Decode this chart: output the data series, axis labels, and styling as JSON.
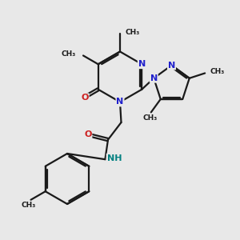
{
  "bg": "#e8e8e8",
  "bc": "#1a1a1a",
  "nc": "#2020cc",
  "oc": "#cc2020",
  "nhc": "#008080",
  "lw": 1.6,
  "off": 0.055,
  "xlim": [
    0,
    10
  ],
  "ylim": [
    0,
    10
  ]
}
